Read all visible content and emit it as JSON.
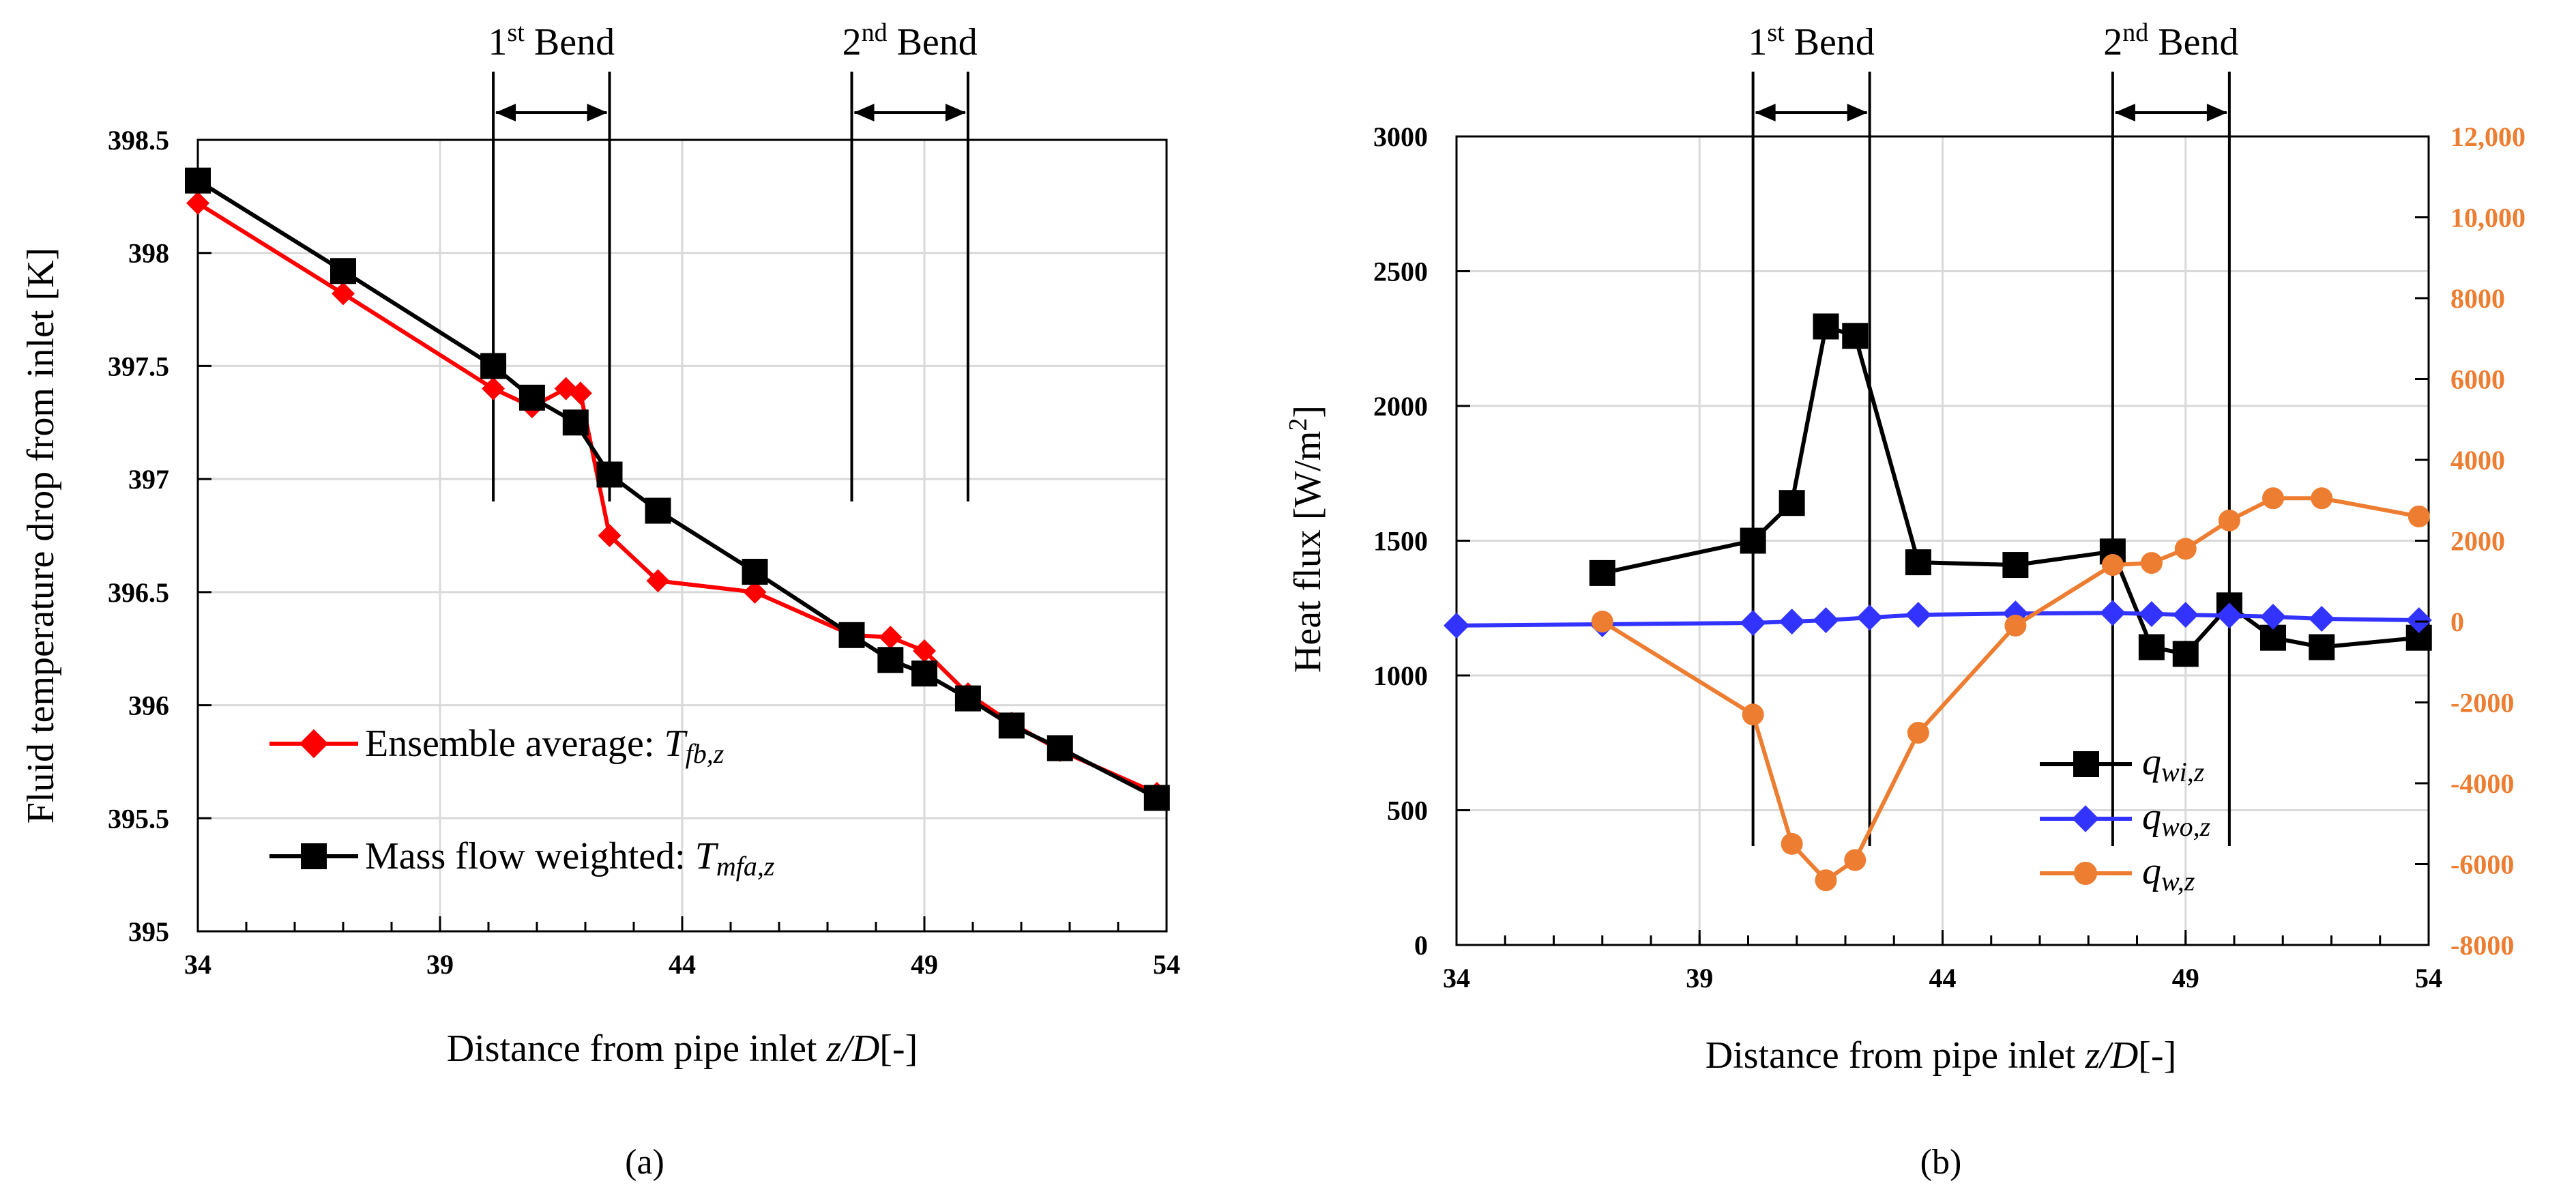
{
  "chart_data": [
    {
      "type": "line",
      "panel_label": "(a)",
      "xlabel": "Distance from pipe inlet ",
      "xlabel_var": "z/D",
      "xlabel_unit": "[-]",
      "ylabel": "Fluid temperature drop from inlet [K]",
      "xlim": [
        34,
        54
      ],
      "ylim": [
        395,
        398.5
      ],
      "x_ticks": [
        "34",
        "39",
        "44",
        "49",
        "54"
      ],
      "y_ticks": [
        "395",
        "395.5",
        "396",
        "396.5",
        "397",
        "397.5",
        "398",
        "398.5"
      ],
      "grid": true,
      "bends": [
        {
          "label": "1",
          "sup": "st",
          "text": " Bend",
          "x_start": 40.1,
          "x_end": 42.5
        },
        {
          "label": "2",
          "sup": "nd",
          "text": " Bend",
          "x_start": 47.5,
          "x_end": 49.9
        }
      ],
      "series": [
        {
          "name": "Ensemble average: ",
          "symbol": "T",
          "subscript": "fb,z",
          "color": "#ff0000",
          "marker": "diamond",
          "x": [
            34.0,
            37.0,
            40.1,
            40.9,
            41.6,
            41.9,
            42.5,
            43.5,
            45.5,
            47.5,
            48.3,
            49.0,
            49.9,
            50.8,
            51.8,
            53.8
          ],
          "values": [
            398.22,
            397.82,
            397.4,
            397.32,
            397.4,
            397.38,
            396.75,
            396.55,
            396.5,
            396.31,
            396.3,
            396.24,
            396.05,
            395.92,
            395.8,
            395.61
          ]
        },
        {
          "name": "Mass flow weighted: ",
          "symbol": "T",
          "subscript": "mfa,z",
          "color": "#000000",
          "marker": "square",
          "x": [
            34.0,
            37.0,
            40.1,
            40.9,
            41.8,
            42.5,
            43.5,
            45.5,
            47.5,
            48.3,
            49.0,
            49.9,
            50.8,
            51.8,
            53.8
          ],
          "values": [
            398.32,
            397.92,
            397.5,
            397.36,
            397.25,
            397.02,
            396.86,
            396.59,
            396.31,
            396.2,
            396.14,
            396.03,
            395.91,
            395.81,
            395.59
          ]
        }
      ]
    },
    {
      "type": "line",
      "panel_label": "(b)",
      "xlabel": "Distance from pipe inlet ",
      "xlabel_var": "z/D",
      "xlabel_unit": "[-]",
      "ylabel": "Heat flux [W/m",
      "ylabel_sup": "2",
      "ylabel_end": "]",
      "xlim": [
        34,
        54
      ],
      "ylim": [
        0,
        3000
      ],
      "y2lim": [
        -8000,
        12000
      ],
      "x_ticks": [
        "34",
        "39",
        "44",
        "49",
        "54"
      ],
      "y_ticks": [
        "0",
        "500",
        "1000",
        "1500",
        "2000",
        "2500",
        "3000"
      ],
      "y2_ticks": [
        "-8000",
        "-6000",
        "-4000",
        "-2000",
        "0",
        "2000",
        "4000",
        "6000",
        "8000",
        "10,000",
        "12,000"
      ],
      "accent_color": "#ed7d31",
      "grid": true,
      "bends": [
        {
          "label": "1",
          "sup": "st",
          "text": " Bend",
          "x_start": 40.1,
          "x_end": 42.5
        },
        {
          "label": "2",
          "sup": "nd",
          "text": " Bend",
          "x_start": 47.5,
          "x_end": 49.9
        }
      ],
      "series": [
        {
          "name": "q",
          "subscript": "wi,z",
          "axis": "left",
          "color": "#000000",
          "marker": "square",
          "x": [
            37.0,
            40.1,
            40.9,
            41.6,
            42.2,
            43.5,
            45.5,
            47.5,
            48.3,
            49.0,
            49.9,
            50.8,
            51.8,
            53.8
          ],
          "values": [
            1380,
            1500,
            1640,
            2295,
            2260,
            1420,
            1410,
            1460,
            1105,
            1080,
            1260,
            1140,
            1105,
            1140
          ]
        },
        {
          "name": "q",
          "subscript": "wo,z",
          "axis": "left",
          "color": "#3333ff",
          "marker": "diamond",
          "x": [
            34.0,
            37.0,
            40.1,
            40.9,
            41.6,
            42.5,
            43.5,
            45.5,
            47.5,
            48.3,
            49.0,
            49.9,
            50.8,
            51.8,
            53.8
          ],
          "values": [
            1185,
            1190,
            1195,
            1200,
            1205,
            1215,
            1225,
            1230,
            1232,
            1228,
            1225,
            1222,
            1218,
            1210,
            1205
          ]
        },
        {
          "name": "q",
          "subscript": "w,z",
          "axis": "right",
          "color": "#ed7d31",
          "marker": "circle",
          "x": [
            37.0,
            40.1,
            40.9,
            41.6,
            42.2,
            43.5,
            45.5,
            47.5,
            48.3,
            49.0,
            49.9,
            50.8,
            51.8,
            53.8
          ],
          "values": [
            0,
            -2300,
            -5500,
            -6400,
            -5900,
            -2750,
            -100,
            1400,
            1450,
            1800,
            2500,
            3050,
            3050,
            2600
          ]
        }
      ]
    }
  ]
}
